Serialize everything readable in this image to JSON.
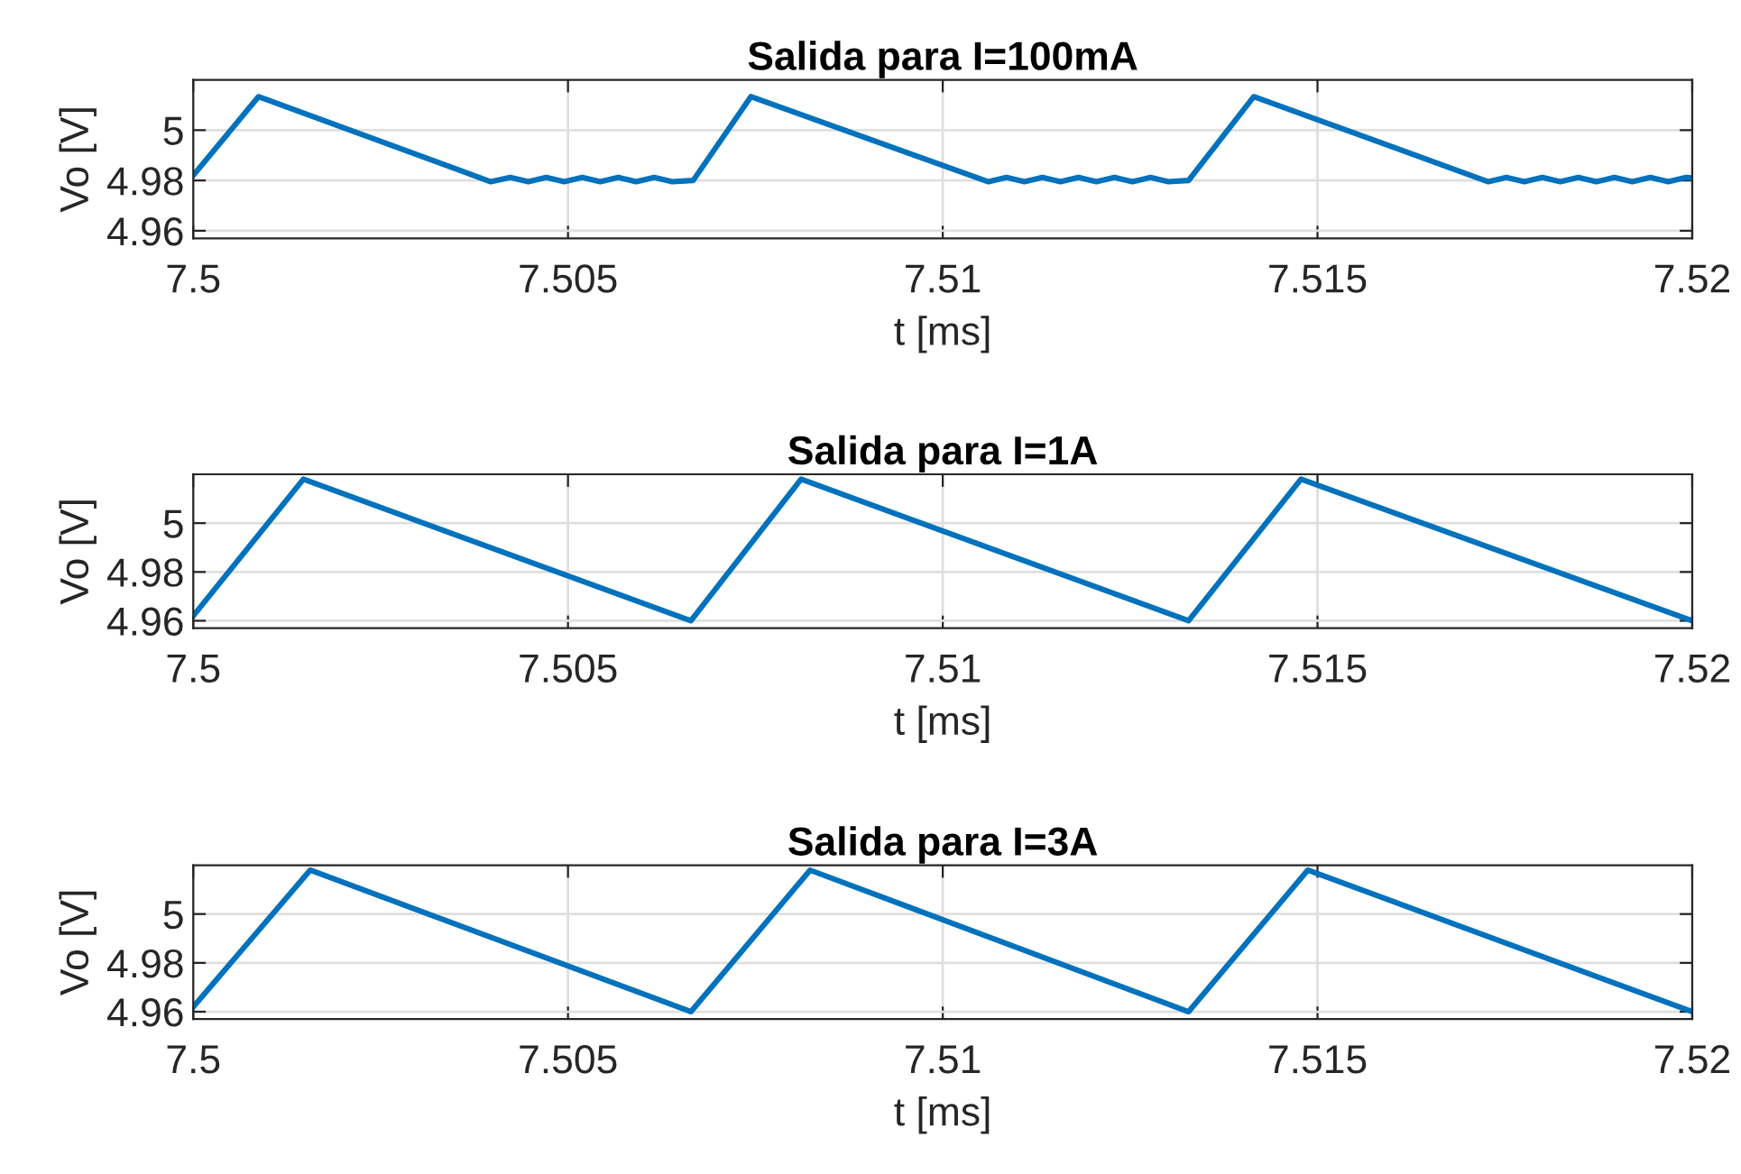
{
  "chart_data": [
    {
      "type": "line",
      "title": "Salida para I=100mA",
      "xlabel": "t [ms]",
      "ylabel": "Vo [V]",
      "xlim": [
        7.5,
        7.52
      ],
      "xticks": [
        7.5,
        7.505,
        7.51,
        7.515,
        7.52
      ],
      "ylim": [
        4.957,
        5.02
      ],
      "yticks": [
        4.96,
        4.98,
        5
      ],
      "grid": true,
      "series": [
        {
          "color": "#0072bd",
          "x": [
            7.5,
            7.50087,
            7.50397,
            7.50423,
            7.50447,
            7.50471,
            7.50495,
            7.50519,
            7.50543,
            7.50567,
            7.50591,
            7.50615,
            7.50639,
            7.50667,
            7.50744,
            7.51061,
            7.51085,
            7.51109,
            7.51133,
            7.51157,
            7.51181,
            7.51205,
            7.51229,
            7.51253,
            7.51277,
            7.51301,
            7.51328,
            7.51415,
            7.51728,
            7.51752,
            7.51776,
            7.518,
            7.51824,
            7.51848,
            7.51872,
            7.51896,
            7.5192,
            7.51944,
            7.51968,
            7.51992,
            7.52
          ],
          "values": [
            4.982,
            5.0133,
            4.9795,
            4.9812,
            4.9795,
            4.9812,
            4.9795,
            4.9812,
            4.9795,
            4.9812,
            4.9795,
            4.9812,
            4.9795,
            4.98,
            5.0133,
            4.9795,
            4.9812,
            4.9795,
            4.9812,
            4.9795,
            4.9812,
            4.9795,
            4.9812,
            4.9795,
            4.9812,
            4.9795,
            4.98,
            5.0133,
            4.9795,
            4.9812,
            4.9795,
            4.9812,
            4.9795,
            4.9812,
            4.9795,
            4.9812,
            4.9795,
            4.9812,
            4.9795,
            4.9812,
            4.981
          ]
        }
      ]
    },
    {
      "type": "line",
      "title": "Salida para I=1A",
      "xlabel": "t [ms]",
      "ylabel": "Vo [V]",
      "xlim": [
        7.5,
        7.52
      ],
      "xticks": [
        7.5,
        7.505,
        7.51,
        7.515,
        7.52
      ],
      "ylim": [
        4.957,
        5.02
      ],
      "yticks": [
        4.96,
        4.98,
        5
      ],
      "grid": true,
      "series": [
        {
          "color": "#0072bd",
          "x": [
            7.5,
            7.50147,
            7.50664,
            7.50811,
            7.51328,
            7.51478,
            7.52
          ],
          "values": [
            4.962,
            5.018,
            4.96,
            5.018,
            4.96,
            5.018,
            4.96
          ]
        }
      ]
    },
    {
      "type": "line",
      "title": "Salida para I=3A",
      "xlabel": "t [ms]",
      "ylabel": "Vo [V]",
      "xlim": [
        7.5,
        7.52
      ],
      "xticks": [
        7.5,
        7.505,
        7.51,
        7.515,
        7.52
      ],
      "ylim": [
        4.957,
        5.02
      ],
      "yticks": [
        4.96,
        4.98,
        5
      ],
      "grid": true,
      "series": [
        {
          "color": "#0072bd",
          "x": [
            7.5,
            7.50156,
            7.50664,
            7.50823,
            7.51328,
            7.51487,
            7.52
          ],
          "values": [
            4.962,
            5.018,
            4.96,
            5.018,
            4.96,
            5.018,
            4.96
          ]
        }
      ]
    }
  ]
}
